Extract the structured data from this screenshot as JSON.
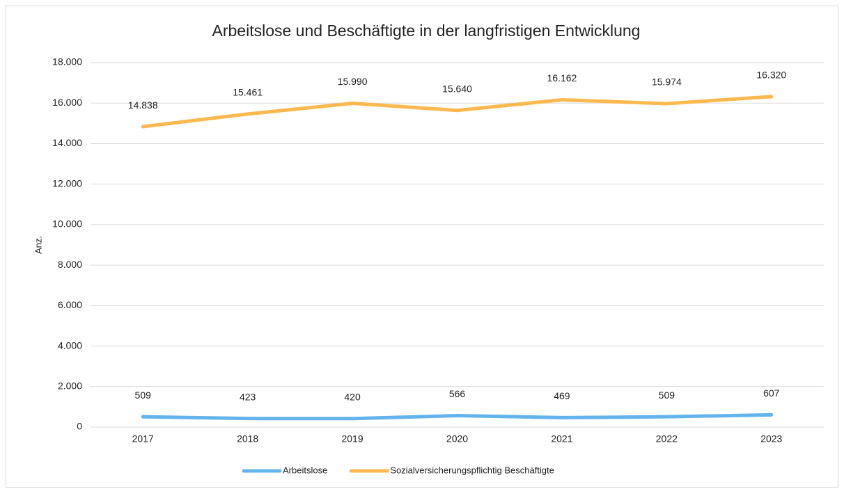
{
  "chart_data": {
    "type": "line",
    "title": "Arbeitslose und Beschäftigte in der langfristigen Entwicklung",
    "y_label": "Anz.",
    "categories": [
      "2017",
      "2018",
      "2019",
      "2020",
      "2021",
      "2022",
      "2023"
    ],
    "series": [
      {
        "name": "Arbeitslose",
        "color": "#63b4ec",
        "values": [
          509,
          423,
          420,
          566,
          469,
          509,
          607
        ],
        "value_labels": [
          "509",
          "423",
          "420",
          "566",
          "469",
          "509",
          "607"
        ]
      },
      {
        "name": "Sozialversicherungspflichtig Beschäftigte",
        "color": "#fdb94f",
        "values": [
          14838,
          15461,
          15990,
          15640,
          16162,
          15974,
          16320
        ],
        "value_labels": [
          "14.838",
          "15.461",
          "15.990",
          "15.640",
          "16.162",
          "15.974",
          "16.320"
        ]
      }
    ],
    "ylim": [
      0,
      18000
    ],
    "yticks": [
      0,
      {
        "value": 2000,
        "label": "2.000"
      },
      {
        "value": 4000,
        "label": "4.000"
      },
      {
        "value": 6000,
        "label": "6.000"
      },
      {
        "value": 8000,
        "label": "8.000"
      },
      {
        "value": 10000,
        "label": "10.000"
      },
      {
        "value": 12000,
        "label": "12.000"
      },
      {
        "value": 14000,
        "label": "14.000"
      },
      {
        "value": 16000,
        "label": "16.000"
      },
      {
        "value": 18000,
        "label": "18.000"
      }
    ],
    "grid": true,
    "legend": "bottom"
  }
}
